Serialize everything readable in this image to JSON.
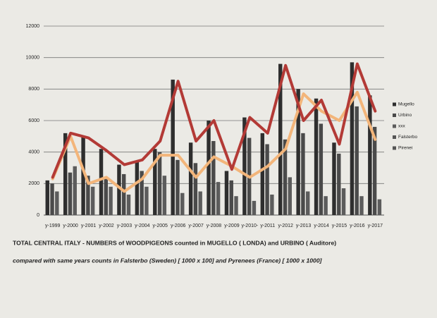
{
  "chart_data": {
    "type": "bar",
    "caption": [
      "TOTAL  CENTRAL ITALY - NUMBERS of WOODPIGEONS counted in MUGELLO ( LONDA) and URBINO ( Auditore)",
      "compared with same years counts in Falsterbo (Sweden) [ 1000 x 100]   and Pyrenees (France) [ 1000 x 1000]"
    ],
    "categories": [
      "y-1999",
      "y-2000",
      "y-2001",
      "y-2002",
      "y-2003",
      "y-2004",
      "y-2005",
      "y-2006",
      "y-2007",
      "y-2008",
      "y-2009",
      "y-2010-",
      "y-2011",
      "y-2012",
      "y-2013",
      "y-2014",
      "y-2015",
      "y-2016",
      "y-2017"
    ],
    "series": [
      {
        "name": "Mugello",
        "type": "bar",
        "color": "#2e2e2e",
        "values": [
          2200,
          5200,
          5000,
          4200,
          3200,
          3400,
          4200,
          8600,
          4600,
          6000,
          2800,
          6200,
          5200,
          9600,
          8000,
          7400,
          4600,
          9700,
          7600
        ]
      },
      {
        "name": "Urbino",
        "type": "bar",
        "color": "#4a4a4a",
        "values": [
          2000,
          2700,
          2500,
          2300,
          2600,
          2800,
          4000,
          3500,
          3300,
          4700,
          2200,
          4900,
          4500,
          4800,
          5200,
          5800,
          3900,
          6900,
          5600
        ]
      },
      {
        "name": "xxx",
        "type": "bar",
        "color": "#5c5c5c",
        "values": [
          1500,
          3100,
          1800,
          1800,
          1300,
          1800,
          2500,
          1400,
          1500,
          2100,
          1200,
          900,
          1300,
          2400,
          1500,
          1200,
          1700,
          1200,
          1000
        ]
      },
      {
        "name": "Falsterbo",
        "type": "line",
        "color": "#f3b57a",
        "values": [
          2300,
          5000,
          2000,
          2400,
          1500,
          2300,
          3800,
          3800,
          2400,
          3700,
          3100,
          2400,
          3100,
          4200,
          7700,
          6600,
          6000,
          7800,
          4800
        ]
      },
      {
        "name": "Pirenei",
        "type": "line",
        "color": "#b33a36",
        "values": [
          2400,
          5200,
          4900,
          4100,
          3200,
          3500,
          4700,
          8500,
          4700,
          6000,
          2900,
          6200,
          5200,
          9500,
          6000,
          7300,
          4500,
          9600,
          6600
        ]
      }
    ],
    "ylim": [
      0,
      12000
    ],
    "yticks": [
      0,
      2000,
      4000,
      6000,
      8000,
      10000,
      12000
    ],
    "grid": true
  }
}
